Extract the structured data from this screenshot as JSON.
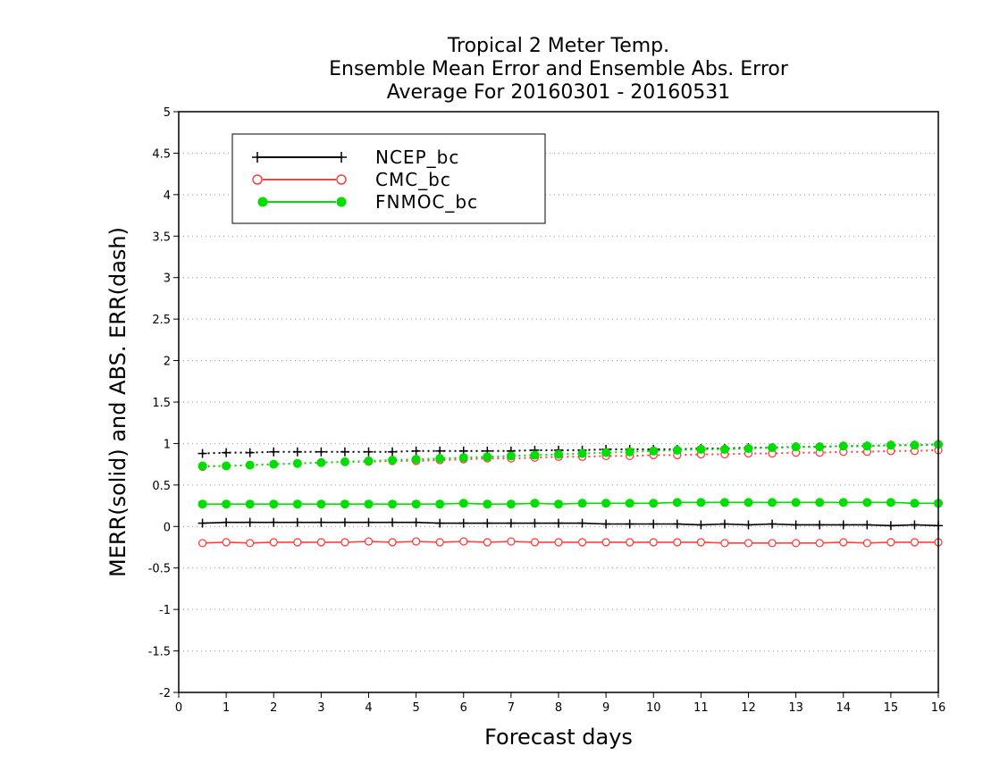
{
  "chart_data": {
    "type": "line",
    "title_lines": [
      "Tropical 2 Meter Temp.",
      "Ensemble Mean Error and Ensemble Abs. Error",
      "Average For 20160301 - 20160531"
    ],
    "xlabel": "Forecast days",
    "ylabel": "MERR(solid) and ABS. ERR(dash)",
    "xlim": [
      0,
      16
    ],
    "ylim": [
      -2,
      5
    ],
    "x_ticks": [
      0,
      1,
      2,
      3,
      4,
      5,
      6,
      7,
      8,
      9,
      10,
      11,
      12,
      13,
      14,
      15,
      16
    ],
    "x_tick_labels": [
      "0",
      "1",
      "2",
      "3",
      "4",
      "5",
      "6",
      "7",
      "8",
      "9",
      "10",
      "11",
      "12",
      "13",
      "14",
      "15",
      "16"
    ],
    "y_ticks": [
      -2,
      -1.5,
      -1,
      -0.5,
      0,
      0.5,
      1,
      1.5,
      2,
      2.5,
      3,
      3.5,
      4,
      4.5,
      5
    ],
    "y_tick_labels": [
      "-2",
      "-1.5",
      "-1",
      "-0.5",
      "0",
      "0.5",
      "1",
      "1.5",
      "2",
      "2.5",
      "3",
      "3.5",
      "4",
      "4.5",
      "5"
    ],
    "grid": "horizontal dotted",
    "legend_position": "top-left",
    "x": [
      0.5,
      1,
      1.5,
      2,
      2.5,
      3,
      3.5,
      4,
      4.5,
      5,
      5.5,
      6,
      6.5,
      7,
      7.5,
      8,
      8.5,
      9,
      9.5,
      10,
      10.5,
      11,
      11.5,
      12,
      12.5,
      13,
      13.5,
      14,
      14.5,
      15,
      15.5,
      16
    ],
    "series": [
      {
        "name": "NCEP_bc",
        "color": "#000000",
        "marker": "plus",
        "merr": [
          0.04,
          0.05,
          0.05,
          0.05,
          0.05,
          0.05,
          0.05,
          0.05,
          0.05,
          0.05,
          0.04,
          0.04,
          0.04,
          0.04,
          0.04,
          0.04,
          0.04,
          0.03,
          0.03,
          0.03,
          0.03,
          0.02,
          0.03,
          0.02,
          0.03,
          0.02,
          0.02,
          0.02,
          0.02,
          0.01,
          0.02,
          0.01
        ],
        "abs_err": [
          0.88,
          0.89,
          0.89,
          0.9,
          0.9,
          0.9,
          0.9,
          0.9,
          0.9,
          0.91,
          0.91,
          0.91,
          0.91,
          0.91,
          0.92,
          0.92,
          0.92,
          0.93,
          0.93,
          0.93,
          0.93,
          0.94,
          0.94,
          0.95,
          0.95,
          0.96,
          0.96,
          0.97,
          0.97,
          0.98,
          0.98,
          0.99
        ]
      },
      {
        "name": "CMC_bc",
        "color": "#ff4040",
        "marker": "open-circle",
        "merr": [
          -0.2,
          -0.19,
          -0.2,
          -0.19,
          -0.19,
          -0.19,
          -0.19,
          -0.18,
          -0.19,
          -0.18,
          -0.19,
          -0.18,
          -0.19,
          -0.18,
          -0.19,
          -0.19,
          -0.19,
          -0.19,
          -0.19,
          -0.19,
          -0.19,
          -0.19,
          -0.2,
          -0.2,
          -0.2,
          -0.2,
          -0.2,
          -0.19,
          -0.2,
          -0.19,
          -0.19,
          -0.19
        ],
        "abs_err": [
          0.72,
          0.73,
          0.74,
          0.75,
          0.76,
          0.77,
          0.78,
          0.78,
          0.79,
          0.79,
          0.8,
          0.81,
          0.82,
          0.82,
          0.83,
          0.84,
          0.84,
          0.85,
          0.85,
          0.86,
          0.86,
          0.87,
          0.87,
          0.88,
          0.88,
          0.89,
          0.89,
          0.9,
          0.9,
          0.91,
          0.91,
          0.92
        ]
      },
      {
        "name": "FNMOC_bc",
        "color": "#00dd00",
        "marker": "filled-circle",
        "merr": [
          0.27,
          0.27,
          0.27,
          0.27,
          0.27,
          0.27,
          0.27,
          0.27,
          0.27,
          0.27,
          0.27,
          0.28,
          0.27,
          0.27,
          0.28,
          0.27,
          0.28,
          0.28,
          0.28,
          0.28,
          0.29,
          0.29,
          0.29,
          0.29,
          0.29,
          0.29,
          0.29,
          0.29,
          0.29,
          0.29,
          0.28,
          0.28
        ],
        "abs_err": [
          0.73,
          0.73,
          0.74,
          0.75,
          0.76,
          0.77,
          0.78,
          0.79,
          0.8,
          0.81,
          0.82,
          0.83,
          0.84,
          0.85,
          0.86,
          0.87,
          0.88,
          0.89,
          0.9,
          0.91,
          0.92,
          0.93,
          0.93,
          0.94,
          0.95,
          0.96,
          0.96,
          0.97,
          0.97,
          0.98,
          0.98,
          0.99
        ]
      }
    ]
  }
}
